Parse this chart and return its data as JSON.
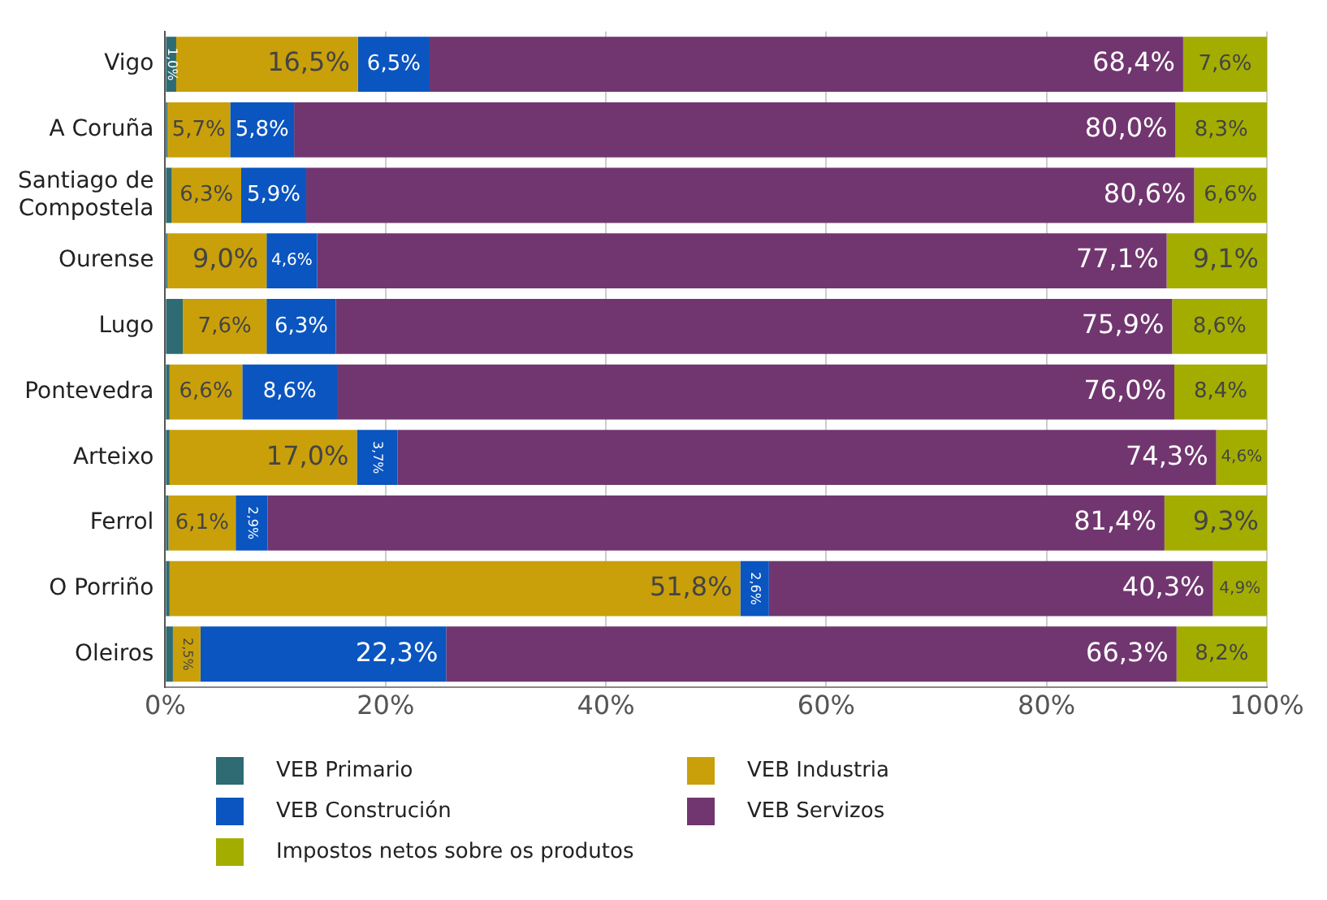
{
  "chart_data": {
    "type": "bar",
    "orientation": "horizontal",
    "stacked": true,
    "categories": [
      "Vigo",
      "A Coruña",
      "Santiago de Compostela",
      "Ourense",
      "Lugo",
      "Pontevedra",
      "Arteixo",
      "Ferrol",
      "O Porriño",
      "Oleiros"
    ],
    "series": [
      {
        "name": "VEB Primario",
        "color": "#2e6b73",
        "values": [
          1.0,
          0.2,
          0.6,
          0.2,
          1.6,
          0.4,
          0.4,
          0.3,
          0.4,
          0.7
        ],
        "value_labels": [
          "1,0%",
          null,
          null,
          null,
          null,
          null,
          null,
          null,
          null,
          null
        ]
      },
      {
        "name": "VEB Industria",
        "color": "#c9a00a",
        "values": [
          16.5,
          5.7,
          6.3,
          9.0,
          7.6,
          6.6,
          17.0,
          6.1,
          51.8,
          2.5
        ],
        "value_labels": [
          "16,5%",
          "5,7%",
          "6,3%",
          "9,0%",
          "7,6%",
          "6,6%",
          "17,0%",
          "6,1%",
          "51,8%",
          "2,5%"
        ]
      },
      {
        "name": "VEB Construción",
        "color": "#0a55c0",
        "values": [
          6.5,
          5.8,
          5.9,
          4.6,
          6.3,
          8.6,
          3.7,
          2.9,
          2.6,
          22.3
        ],
        "value_labels": [
          "6,5%",
          "5,8%",
          "5,9%",
          "4,6%",
          "6,3%",
          "8,6%",
          "3,7%",
          "2,9%",
          "2,6%",
          "22,3%"
        ]
      },
      {
        "name": "VEB Servizos",
        "color": "#71366f",
        "values": [
          68.4,
          80.0,
          80.6,
          77.1,
          75.9,
          76.0,
          74.3,
          81.4,
          40.3,
          66.3
        ],
        "value_labels": [
          "68,4%",
          "80,0%",
          "80,6%",
          "77,1%",
          "75,9%",
          "76,0%",
          "74,3%",
          "81,4%",
          "40,3%",
          "66,3%"
        ]
      },
      {
        "name": "Impostos netos sobre os produtos",
        "color": "#a3ad00",
        "values": [
          7.6,
          8.3,
          6.6,
          9.1,
          8.6,
          8.4,
          4.6,
          9.3,
          4.9,
          8.2
        ],
        "value_labels": [
          "7,6%",
          "8,3%",
          "6,6%",
          "9,1%",
          "8,6%",
          "8,4%",
          "4,6%",
          "9,3%",
          "4,9%",
          "8,2%"
        ]
      }
    ],
    "xlim": [
      0,
      100
    ],
    "xticks": [
      {
        "value": 0,
        "label": "0%"
      },
      {
        "value": 20,
        "label": "20%"
      },
      {
        "value": 40,
        "label": "40%"
      },
      {
        "value": 60,
        "label": "60%"
      },
      {
        "value": 80,
        "label": "80%"
      },
      {
        "value": 100,
        "label": "100%"
      }
    ],
    "grid": "x",
    "legend": "bottom"
  }
}
